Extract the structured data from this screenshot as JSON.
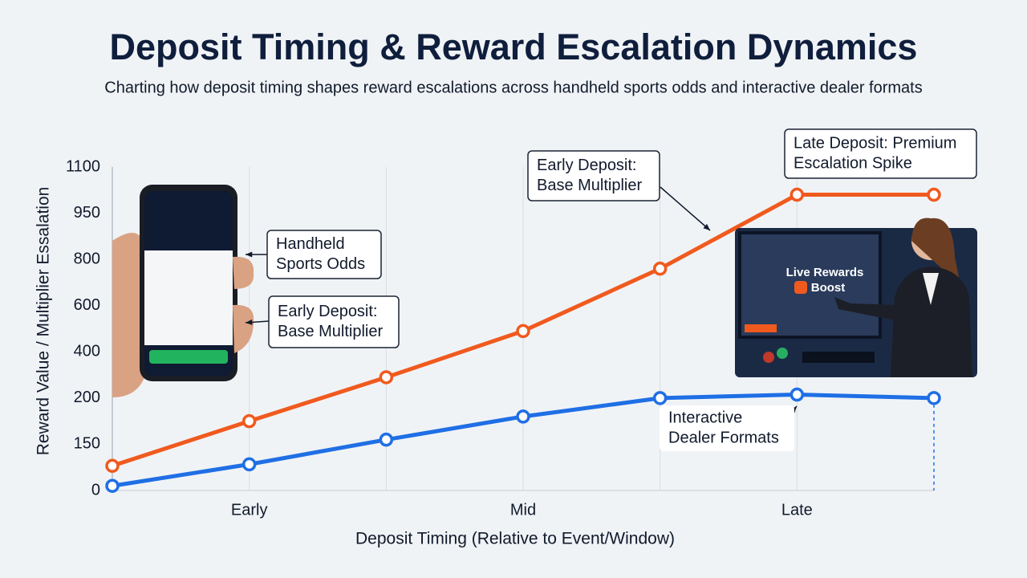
{
  "chart_data": {
    "type": "line",
    "title": "Deposit Timing & Reward Escalation Dynamics",
    "subtitle": "Charting how deposit timing shapes reward escalations across handheld sports odds and interactive dealer formats",
    "x_label": "Deposit Timing (Relative to Event/Window)",
    "y_label": "Reward Value / Multiplier Essalation",
    "categories": [
      null,
      "Early",
      null,
      "Mid",
      null,
      "Late",
      null
    ],
    "series": [
      {
        "name": "Late Deposit",
        "color": "#f05a1e",
        "values": [
          80,
          175,
          290,
          490,
          760,
          1010,
          1010
        ]
      },
      {
        "name": "Interactive Dealer Formats",
        "color": "#1f6fe5",
        "values": [
          15,
          85,
          155,
          180,
          200,
          215,
          200
        ]
      }
    ],
    "ylim": [
      0,
      1100
    ],
    "yticks": [
      0,
      150,
      200,
      400,
      600,
      800,
      950,
      1100
    ],
    "grid": true,
    "annotations": [
      {
        "lines": [
          "Handheld",
          "Sports Odds"
        ]
      },
      {
        "lines": [
          "Early Deposit:",
          "Base Multiplier"
        ]
      },
      {
        "lines": [
          "Early Deposit:",
          "Base Multiplier"
        ]
      },
      {
        "lines": [
          "Late Deposit: Premium",
          "Escalation Spike"
        ]
      },
      {
        "lines": [
          "Interactive",
          "Dealer Formats"
        ]
      }
    ],
    "screen_label": [
      "Live Rewards",
      "Boost"
    ]
  }
}
